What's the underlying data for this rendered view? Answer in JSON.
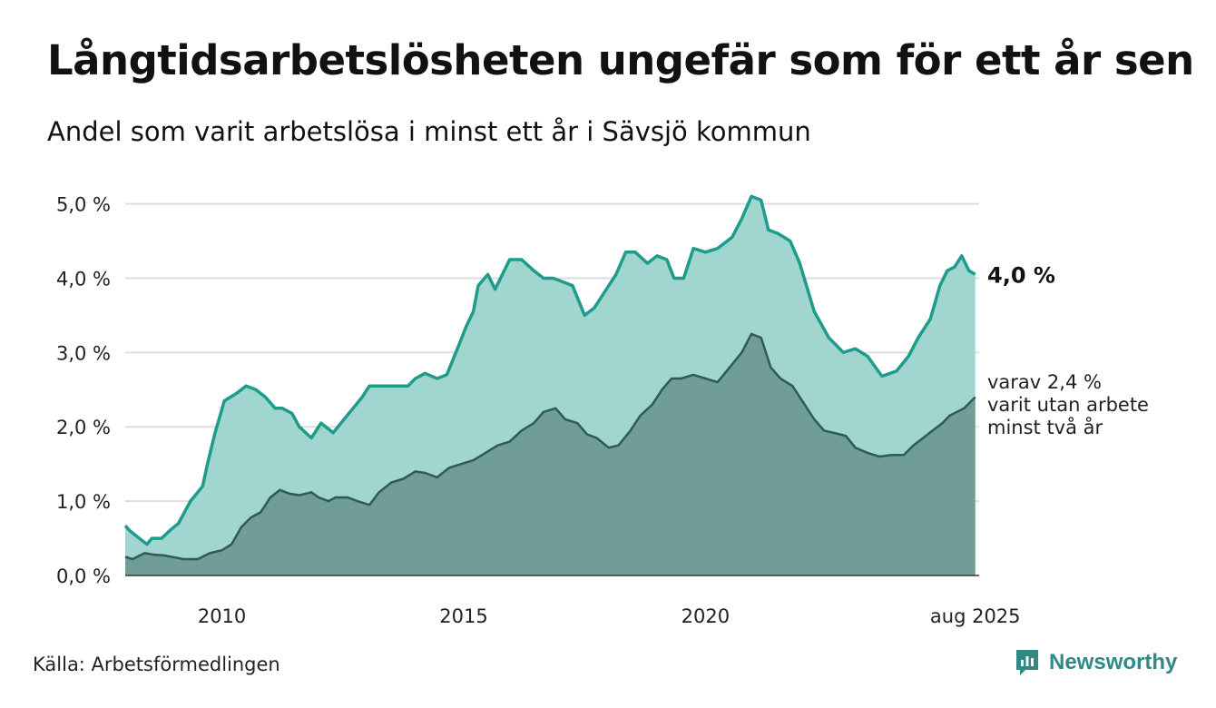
{
  "title": "Långtidsarbetslösheten ungefär som för ett år sen",
  "subtitle": "Andel som varit arbetslösa i minst ett år i Sävsjö kommun",
  "source": "Källa: Arbetsförmedlingen",
  "brand": {
    "name": "Newsworthy"
  },
  "colors": {
    "total_area": "#a1d5cf",
    "total_line": "#1d9c8c",
    "long_area": "#719d97",
    "long_line": "#2f5a55",
    "grid": "#dddddd",
    "brand": "#2e8a82"
  },
  "chart_data": {
    "type": "area",
    "ylim": [
      0,
      5.3
    ],
    "yticks": [
      0,
      1,
      2,
      3,
      4,
      5
    ],
    "ytick_labels": [
      "0,0 %",
      "1,0 %",
      "2,0 %",
      "3,0 %",
      "4,0 %",
      "5,0 %"
    ],
    "xlim": [
      2008.0,
      2025.66
    ],
    "xticks": [
      2010,
      2015,
      2020,
      2025.58
    ],
    "xtick_labels": [
      "2010",
      "2015",
      "2020",
      "aug 2025"
    ],
    "grid": true,
    "end_labels": {
      "total": "4,0 %",
      "long_term": [
        "varav 2,4 %",
        "varit utan arbete",
        "minst två år"
      ]
    },
    "series": [
      {
        "key": "total",
        "x": [
          2008.0,
          2008.1,
          2008.25,
          2008.45,
          2008.55,
          2008.75,
          2008.95,
          2009.1,
          2009.35,
          2009.6,
          2009.7,
          2009.85,
          2010.05,
          2010.3,
          2010.5,
          2010.7,
          2010.9,
          2011.1,
          2011.25,
          2011.45,
          2011.6,
          2011.85,
          2012.05,
          2012.3,
          2012.55,
          2012.65,
          2012.9,
          2013.05,
          2013.3,
          2013.55,
          2013.85,
          2014.0,
          2014.2,
          2014.45,
          2014.65,
          2014.9,
          2015.05,
          2015.2,
          2015.3,
          2015.5,
          2015.65,
          2015.95,
          2016.2,
          2016.45,
          2016.65,
          2016.85,
          2017.05,
          2017.25,
          2017.5,
          2017.7,
          2017.95,
          2018.15,
          2018.35,
          2018.55,
          2018.8,
          2019.0,
          2019.2,
          2019.35,
          2019.55,
          2019.75,
          2020.0,
          2020.25,
          2020.55,
          2020.75,
          2020.95,
          2021.15,
          2021.3,
          2021.5,
          2021.75,
          2021.95,
          2022.25,
          2022.55,
          2022.85,
          2023.1,
          2023.35,
          2023.65,
          2023.95,
          2024.2,
          2024.4,
          2024.65,
          2024.85,
          2025.0,
          2025.15,
          2025.3,
          2025.45,
          2025.58
        ],
        "values": [
          0.67,
          0.6,
          0.52,
          0.42,
          0.5,
          0.5,
          0.62,
          0.7,
          1.0,
          1.2,
          1.5,
          1.9,
          2.35,
          2.45,
          2.55,
          2.5,
          2.4,
          2.25,
          2.25,
          2.18,
          2.0,
          1.85,
          2.05,
          1.92,
          2.12,
          2.2,
          2.4,
          2.55,
          2.55,
          2.55,
          2.55,
          2.65,
          2.72,
          2.65,
          2.7,
          3.1,
          3.35,
          3.55,
          3.9,
          4.05,
          3.85,
          4.25,
          4.25,
          4.1,
          4.0,
          4.0,
          3.95,
          3.9,
          3.5,
          3.6,
          3.85,
          4.05,
          4.35,
          4.35,
          4.2,
          4.3,
          4.25,
          4.0,
          4.0,
          4.4,
          4.35,
          4.4,
          4.55,
          4.8,
          5.1,
          5.05,
          4.65,
          4.6,
          4.5,
          4.2,
          3.55,
          3.2,
          3.0,
          3.05,
          2.95,
          2.68,
          2.75,
          2.95,
          3.2,
          3.45,
          3.9,
          4.1,
          4.15,
          4.3,
          4.1,
          4.05
        ]
      },
      {
        "key": "long_term",
        "x": [
          2008.0,
          2008.15,
          2008.4,
          2008.6,
          2008.8,
          2009.05,
          2009.2,
          2009.5,
          2009.75,
          2010.0,
          2010.2,
          2010.4,
          2010.6,
          2010.8,
          2011.0,
          2011.2,
          2011.4,
          2011.6,
          2011.85,
          2012.0,
          2012.2,
          2012.35,
          2012.6,
          2012.8,
          2013.05,
          2013.25,
          2013.5,
          2013.75,
          2014.0,
          2014.2,
          2014.45,
          2014.7,
          2014.95,
          2015.2,
          2015.45,
          2015.7,
          2015.95,
          2016.2,
          2016.45,
          2016.65,
          2016.9,
          2017.1,
          2017.35,
          2017.55,
          2017.75,
          2018.0,
          2018.2,
          2018.45,
          2018.65,
          2018.9,
          2019.1,
          2019.3,
          2019.5,
          2019.75,
          2020.0,
          2020.25,
          2020.5,
          2020.75,
          2020.95,
          2021.15,
          2021.35,
          2021.55,
          2021.8,
          2022.0,
          2022.25,
          2022.45,
          2022.65,
          2022.9,
          2023.1,
          2023.35,
          2023.6,
          2023.85,
          2024.1,
          2024.3,
          2024.5,
          2024.7,
          2024.9,
          2025.05,
          2025.2,
          2025.35,
          2025.5,
          2025.58
        ],
        "values": [
          0.25,
          0.22,
          0.3,
          0.28,
          0.27,
          0.24,
          0.22,
          0.22,
          0.3,
          0.34,
          0.42,
          0.65,
          0.78,
          0.85,
          1.05,
          1.15,
          1.1,
          1.08,
          1.12,
          1.05,
          1.0,
          1.05,
          1.05,
          1.0,
          0.95,
          1.12,
          1.25,
          1.3,
          1.4,
          1.38,
          1.32,
          1.45,
          1.5,
          1.55,
          1.65,
          1.75,
          1.8,
          1.95,
          2.05,
          2.2,
          2.25,
          2.1,
          2.05,
          1.9,
          1.85,
          1.72,
          1.75,
          1.95,
          2.15,
          2.3,
          2.5,
          2.65,
          2.65,
          2.7,
          2.65,
          2.6,
          2.8,
          3.0,
          3.25,
          3.2,
          2.8,
          2.65,
          2.55,
          2.35,
          2.1,
          1.95,
          1.92,
          1.88,
          1.72,
          1.65,
          1.6,
          1.62,
          1.62,
          1.75,
          1.85,
          1.95,
          2.05,
          2.15,
          2.2,
          2.25,
          2.35,
          2.4
        ]
      }
    ]
  }
}
